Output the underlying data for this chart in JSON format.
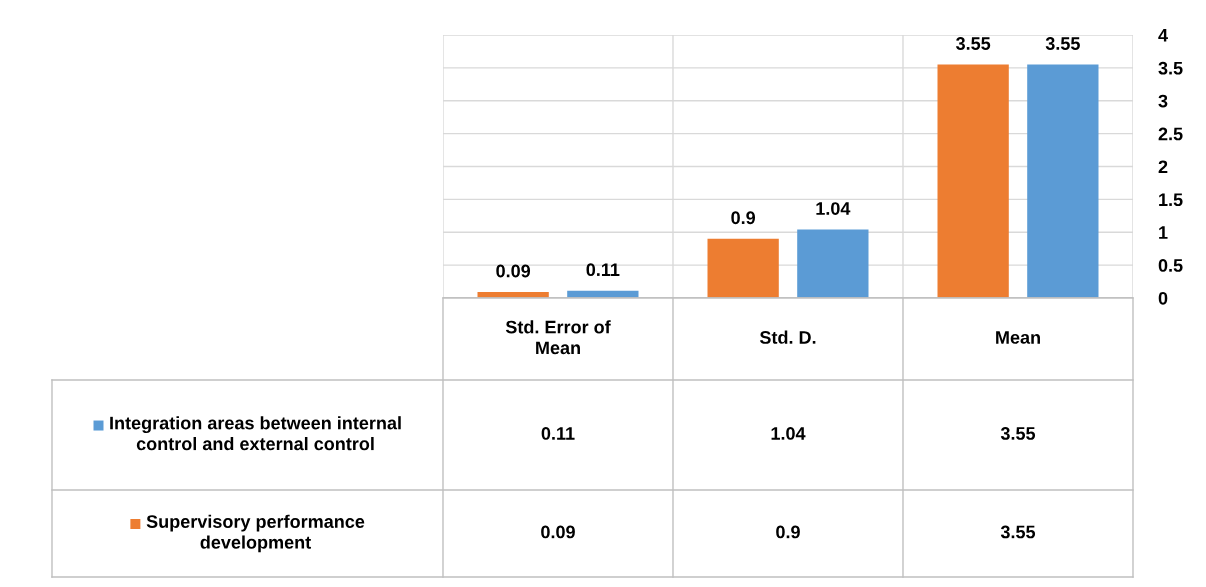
{
  "chart_data": {
    "type": "bar",
    "categories": [
      "Std. Error of Mean",
      "Std. D.",
      "Mean"
    ],
    "series": [
      {
        "name": "Supervisory performance development",
        "color": "#ed7d31",
        "values": [
          0.09,
          0.9,
          3.55
        ],
        "value_labels": [
          "0.09",
          "0.9",
          "3.55"
        ]
      },
      {
        "name": "Integration areas between internal control and external control",
        "color": "#5b9bd5",
        "values": [
          0.11,
          1.04,
          3.55
        ],
        "value_labels": [
          "0.11",
          "1.04",
          "3.55"
        ]
      }
    ],
    "ylim": [
      0,
      4
    ],
    "yticks": [
      0,
      0.5,
      1,
      1.5,
      2,
      2.5,
      3,
      3.5,
      4
    ],
    "annotations": [
      "0.11",
      "1.04",
      "3.55",
      "0.09",
      "0.9",
      "3.55"
    ],
    "grid": "y",
    "data_labels": true,
    "legend": "bottom left"
  }
}
